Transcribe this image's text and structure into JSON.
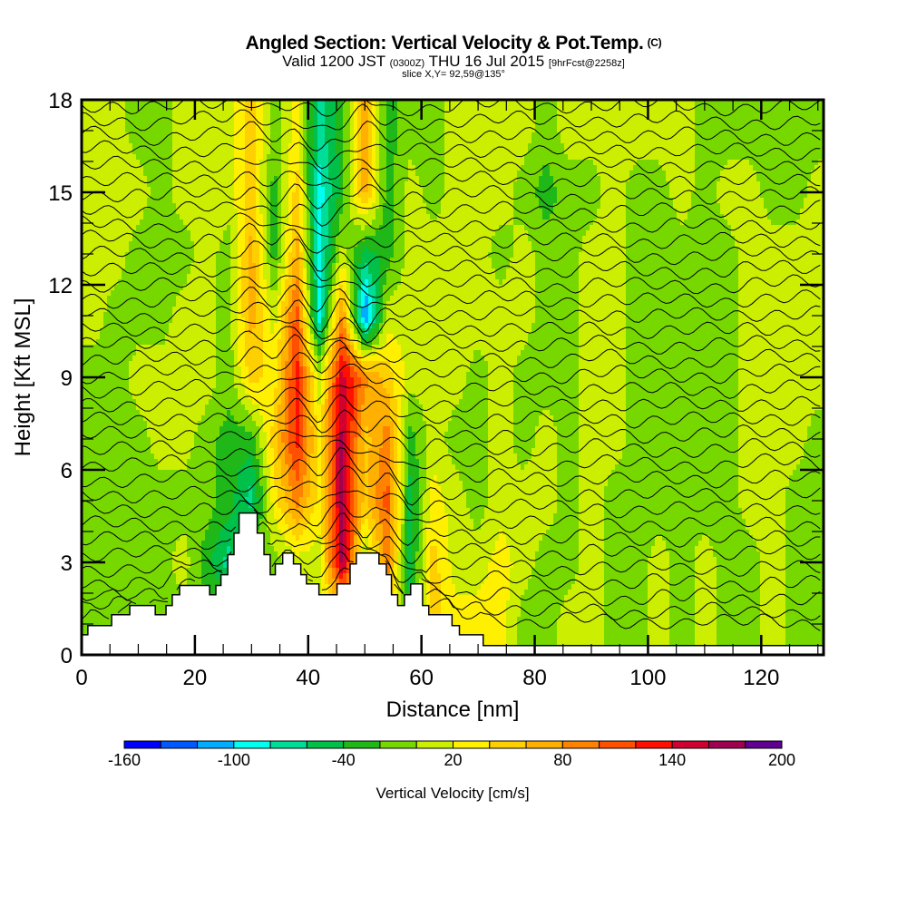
{
  "header": {
    "title": "Angled Section: Vertical Velocity & Pot.Temp.",
    "title_suffix": "(C)",
    "valid_prefix": "Valid 1200 JST",
    "valid_utc": "(0300Z)",
    "valid_date": "THU 16 Jul 2015",
    "forecast": "[9hrFcst@2258z]",
    "slice": "slice X,Y= 92,59@135°"
  },
  "chart_data": {
    "type": "heatmap",
    "title": "Angled Section: Vertical Velocity & Pot.Temp.",
    "xlabel": "Distance [nm]",
    "ylabel": "Height [Kft MSL]",
    "xlim": [
      0,
      131
    ],
    "ylim": [
      0,
      18
    ],
    "x_ticks": [
      0,
      20,
      40,
      60,
      80,
      100,
      120
    ],
    "x_tick_labels": [
      "0",
      "20",
      "40",
      "60",
      "80",
      "100",
      "120"
    ],
    "y_ticks": [
      0,
      3,
      6,
      9,
      12,
      15,
      18
    ],
    "y_tick_labels": [
      "0",
      "3",
      "6",
      "9",
      "12",
      "15",
      "18"
    ],
    "x_minor_step": 5,
    "y_minor_step": 1,
    "grid": false,
    "data_floor_kft": 0.3,
    "colorbar": {
      "title": "Vertical Velocity [cm/s]",
      "orientation": "horizontal",
      "placement": "bottom",
      "bounds": [
        -160,
        -140,
        -120,
        -100,
        -80,
        -60,
        -40,
        -20,
        0,
        20,
        40,
        60,
        80,
        100,
        120,
        140,
        160,
        180,
        200
      ],
      "colors": [
        "#0000ff",
        "#0059ff",
        "#00adff",
        "#00fff0",
        "#00dd99",
        "#00c04a",
        "#20b818",
        "#77d800",
        "#ccee00",
        "#fff000",
        "#ffd000",
        "#ffb000",
        "#ff8200",
        "#ff5000",
        "#ff1000",
        "#d00030",
        "#a00050",
        "#600090"
      ],
      "tick_values": [
        -160,
        -100,
        -40,
        20,
        80,
        140,
        200
      ],
      "tick_labels": [
        "-160",
        "-100",
        "-40",
        "20",
        "80",
        "140",
        "200"
      ]
    },
    "velocity_grid": {
      "units": "cm/s",
      "x_centers_nm": [
        2,
        6,
        10,
        14,
        18,
        22,
        26,
        30,
        34,
        38,
        42,
        46,
        50,
        54,
        58,
        62,
        66,
        70,
        74,
        78,
        82,
        86,
        90,
        94,
        98,
        102,
        106,
        110,
        114,
        118,
        122,
        126,
        130
      ],
      "x_width_nm": 4,
      "height_centers_kft": [
        1,
        3,
        5,
        7,
        9,
        11,
        13,
        15,
        17
      ],
      "height_width_kft": 2,
      "values_by_column": [
        [
          -10,
          -10,
          -10,
          -10,
          -10,
          10,
          10,
          10,
          10
        ],
        [
          -10,
          -10,
          -10,
          -10,
          -10,
          -10,
          10,
          10,
          10
        ],
        [
          -10,
          -10,
          -10,
          -10,
          10,
          -10,
          -10,
          10,
          -10
        ],
        [
          -10,
          -10,
          -10,
          10,
          10,
          -10,
          -10,
          -10,
          -10
        ],
        [
          -10,
          10,
          -10,
          10,
          10,
          10,
          -10,
          10,
          10
        ],
        [
          -10,
          -30,
          -10,
          -10,
          10,
          10,
          10,
          10,
          10
        ],
        [
          -10,
          -70,
          -30,
          -30,
          -10,
          -10,
          -10,
          10,
          10
        ],
        [
          10,
          10,
          -70,
          -30,
          50,
          70,
          70,
          50,
          50
        ],
        [
          10,
          -10,
          30,
          50,
          30,
          10,
          -30,
          -30,
          -10
        ],
        [
          10,
          10,
          90,
          130,
          130,
          110,
          70,
          50,
          30
        ],
        [
          10,
          10,
          30,
          30,
          10,
          -90,
          -90,
          -90,
          -70
        ],
        [
          10,
          170,
          170,
          170,
          150,
          90,
          10,
          -30,
          -30
        ],
        [
          10,
          -10,
          50,
          50,
          90,
          -130,
          -50,
          70,
          70
        ],
        [
          50,
          90,
          110,
          90,
          50,
          10,
          -30,
          -30,
          -30
        ],
        [
          -30,
          -50,
          -50,
          -30,
          10,
          10,
          10,
          10,
          -10
        ],
        [
          50,
          50,
          30,
          10,
          10,
          10,
          10,
          -10,
          -10
        ],
        [
          30,
          10,
          10,
          -10,
          10,
          10,
          10,
          10,
          10
        ],
        [
          30,
          10,
          -10,
          -10,
          -10,
          10,
          10,
          10,
          10
        ],
        [
          30,
          30,
          10,
          10,
          10,
          10,
          -10,
          10,
          10
        ],
        [
          -10,
          10,
          10,
          -10,
          -10,
          10,
          10,
          -10,
          10
        ],
        [
          -10,
          -10,
          10,
          10,
          -10,
          -10,
          -10,
          -30,
          -10
        ],
        [
          10,
          -10,
          -10,
          -10,
          -10,
          -10,
          -10,
          -10,
          10
        ],
        [
          10,
          10,
          10,
          10,
          10,
          10,
          10,
          -10,
          10
        ],
        [
          -10,
          -10,
          -10,
          10,
          10,
          10,
          10,
          10,
          10
        ],
        [
          -10,
          -10,
          -10,
          -10,
          -10,
          -10,
          -10,
          -10,
          10
        ],
        [
          10,
          10,
          -10,
          -10,
          -10,
          -10,
          -10,
          -10,
          10
        ],
        [
          -10,
          -10,
          -10,
          -10,
          -10,
          -10,
          -10,
          10,
          10
        ],
        [
          10,
          10,
          -10,
          -10,
          -10,
          -10,
          -10,
          -10,
          -10
        ],
        [
          -10,
          -10,
          -10,
          -10,
          -10,
          -10,
          -10,
          10,
          -10
        ],
        [
          -10,
          -10,
          10,
          10,
          10,
          10,
          10,
          10,
          -10
        ],
        [
          10,
          10,
          10,
          10,
          10,
          10,
          10,
          -10,
          -10
        ],
        [
          -10,
          -10,
          -10,
          10,
          10,
          10,
          10,
          -10,
          -10
        ],
        [
          -10,
          -10,
          -10,
          -10,
          10,
          10,
          10,
          10,
          -10
        ]
      ]
    },
    "terrain_profile": {
      "units": [
        "nm",
        "kft"
      ],
      "steps": [
        [
          0,
          1.1,
          0.65
        ],
        [
          1.1,
          5.3,
          0.95
        ],
        [
          5.3,
          8.5,
          1.3
        ],
        [
          8.5,
          13,
          1.6
        ],
        [
          13,
          14.9,
          1.3
        ],
        [
          14.9,
          16,
          1.6
        ],
        [
          16,
          17.3,
          1.95
        ],
        [
          17.3,
          22.6,
          2.25
        ],
        [
          22.6,
          23.7,
          1.95
        ],
        [
          23.7,
          24.6,
          2.25
        ],
        [
          24.6,
          25.8,
          2.6
        ],
        [
          25.8,
          26.9,
          3.25
        ],
        [
          26.9,
          27.8,
          3.95
        ],
        [
          27.8,
          31,
          4.6
        ],
        [
          31,
          32.2,
          3.95
        ],
        [
          32.2,
          33.3,
          3.25
        ],
        [
          33.3,
          34.2,
          2.6
        ],
        [
          34.2,
          35.5,
          2.95
        ],
        [
          35.5,
          37.4,
          3.3
        ],
        [
          37.4,
          38.7,
          2.95
        ],
        [
          38.7,
          39.7,
          2.6
        ],
        [
          39.7,
          41.9,
          2.3
        ],
        [
          41.9,
          45.1,
          1.95
        ],
        [
          45.1,
          47.4,
          2.3
        ],
        [
          47.4,
          48.5,
          2.95
        ],
        [
          48.5,
          52.5,
          3.3
        ],
        [
          52.5,
          53.8,
          2.95
        ],
        [
          53.8,
          54.7,
          2.6
        ],
        [
          54.7,
          55.8,
          1.95
        ],
        [
          55.8,
          57,
          1.6
        ],
        [
          57,
          58.1,
          1.95
        ],
        [
          58.1,
          60.2,
          2.3
        ],
        [
          60.2,
          61.3,
          1.6
        ],
        [
          61.3,
          65.4,
          1.3
        ],
        [
          65.4,
          66.7,
          0.95
        ],
        [
          66.7,
          70.9,
          0.65
        ]
      ]
    },
    "theta_contours": {
      "count": 36,
      "bottom_kft": 0.9,
      "top_kft": 17.8
    }
  }
}
